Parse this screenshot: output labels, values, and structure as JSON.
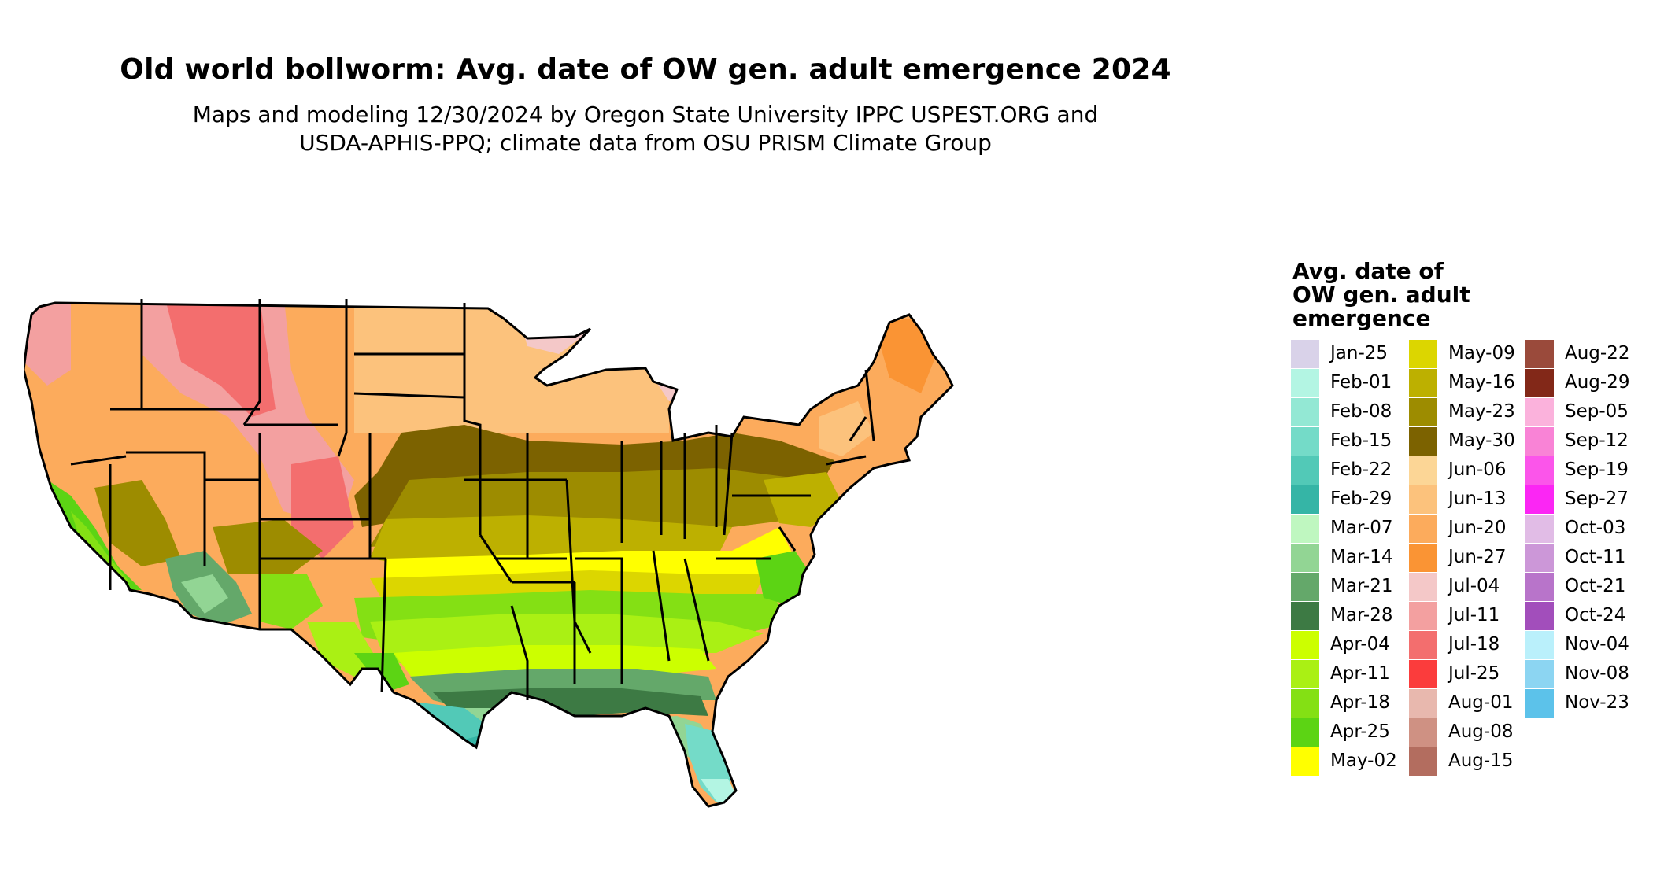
{
  "title": "Old world bollworm: Avg. date of OW gen. adult emergence 2024",
  "subtitle_line1": "Maps and modeling 12/30/2024 by Oregon State University IPPC USPEST.ORG and",
  "subtitle_line2": "USDA-APHIS-PPQ; climate data from OSU PRISM Climate Group",
  "legend": {
    "title_lines": [
      "Avg. date of",
      "OW gen. adult",
      "emergence"
    ],
    "columns": [
      [
        {
          "label": "Jan-25",
          "color": "#d9d2e9"
        },
        {
          "label": "Feb-01",
          "color": "#b3f5e3"
        },
        {
          "label": "Feb-08",
          "color": "#93e8d4"
        },
        {
          "label": "Feb-15",
          "color": "#74dbc8"
        },
        {
          "label": "Feb-22",
          "color": "#52c9b7"
        },
        {
          "label": "Feb-29",
          "color": "#35b5a6"
        },
        {
          "label": "Mar-07",
          "color": "#bff7c0"
        },
        {
          "label": "Mar-14",
          "color": "#92d594"
        },
        {
          "label": "Mar-21",
          "color": "#64a86a"
        },
        {
          "label": "Mar-28",
          "color": "#3d7a44"
        },
        {
          "label": "Apr-04",
          "color": "#ccff00"
        },
        {
          "label": "Apr-11",
          "color": "#aaf014"
        },
        {
          "label": "Apr-18",
          "color": "#84e014"
        },
        {
          "label": "Apr-25",
          "color": "#5cd414"
        },
        {
          "label": "May-02",
          "color": "#ffff00"
        }
      ],
      [
        {
          "label": "May-09",
          "color": "#dcd600"
        },
        {
          "label": "May-16",
          "color": "#bdb000"
        },
        {
          "label": "May-23",
          "color": "#9d8c00"
        },
        {
          "label": "May-30",
          "color": "#7c6200"
        },
        {
          "label": "Jun-06",
          "color": "#fcd696"
        },
        {
          "label": "Jun-13",
          "color": "#fcc27c"
        },
        {
          "label": "Jun-20",
          "color": "#fcab5c"
        },
        {
          "label": "Jun-27",
          "color": "#fa9434"
        },
        {
          "label": "Jul-04",
          "color": "#f4c8c8"
        },
        {
          "label": "Jul-11",
          "color": "#f3a0a0"
        },
        {
          "label": "Jul-18",
          "color": "#f36e6e"
        },
        {
          "label": "Jul-25",
          "color": "#fb3c3c"
        },
        {
          "label": "Aug-01",
          "color": "#e8b8ae"
        },
        {
          "label": "Aug-08",
          "color": "#cf9183"
        },
        {
          "label": "Aug-15",
          "color": "#b36d5f"
        }
      ],
      [
        {
          "label": "Aug-22",
          "color": "#9a4a3b"
        },
        {
          "label": "Aug-29",
          "color": "#822818"
        },
        {
          "label": "Sep-05",
          "color": "#fbb2dc"
        },
        {
          "label": "Sep-12",
          "color": "#f983d6"
        },
        {
          "label": "Sep-19",
          "color": "#fb55ea"
        },
        {
          "label": "Sep-27",
          "color": "#fb26f4"
        },
        {
          "label": "Oct-03",
          "color": "#e1bce6"
        },
        {
          "label": "Oct-11",
          "color": "#cc97d8"
        },
        {
          "label": "Oct-21",
          "color": "#b874ca"
        },
        {
          "label": "Oct-24",
          "color": "#a24ebb"
        },
        {
          "label": "Nov-04",
          "color": "#baf0fb"
        },
        {
          "label": "Nov-08",
          "color": "#8cd5f2"
        },
        {
          "label": "Nov-23",
          "color": "#5cc2ea"
        }
      ]
    ]
  }
}
